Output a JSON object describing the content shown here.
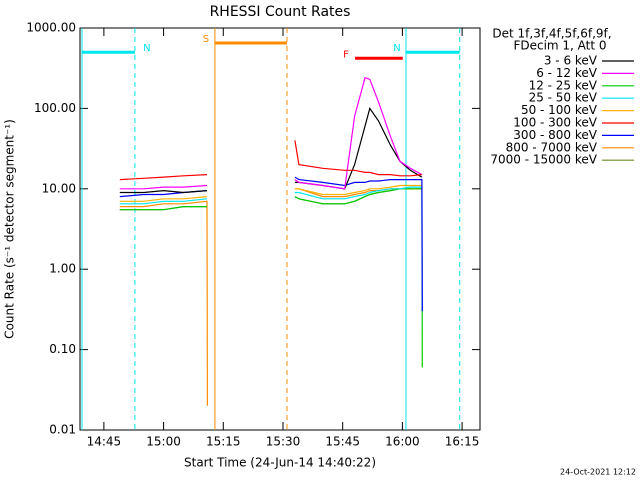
{
  "chart_data": {
    "type": "line",
    "title": "RHESSI Count Rates",
    "xlabel": "Start Time (24-Jun-14 14:40:22)",
    "ylabel": "Count Rate (s⁻¹ detector segment⁻¹)",
    "legend_header": [
      "Det 1f,3f,4f,5f,6f,9f,",
      "FDecim 1, Att 0"
    ],
    "footer": "24-Oct-2021 12:12",
    "log_y": true,
    "xlim": [
      879,
      979.5
    ],
    "ylim": [
      0.01,
      1000
    ],
    "xticks": [
      {
        "value": 885,
        "label": "14:45"
      },
      {
        "value": 900,
        "label": "15:00"
      },
      {
        "value": 915,
        "label": "15:15"
      },
      {
        "value": 930,
        "label": "15:30"
      },
      {
        "value": 945,
        "label": "15:45"
      },
      {
        "value": 960,
        "label": "16:00"
      },
      {
        "value": 975,
        "label": "16:15"
      }
    ],
    "yticks": [
      {
        "value": 1000,
        "label": "1000.00"
      },
      {
        "value": 100,
        "label": "100.00"
      },
      {
        "value": 10,
        "label": "10.00"
      },
      {
        "value": 1,
        "label": "1.00"
      },
      {
        "value": 0.1,
        "label": "0.10"
      },
      0.01
    ],
    "x": [
      889,
      895,
      900,
      905,
      910.9,
      911,
      922,
      933,
      934,
      940,
      945.5,
      948,
      950.6,
      951.8,
      954,
      957,
      959.4,
      962,
      964.9,
      965
    ],
    "series": [
      {
        "name": "7000 - 15000 keV",
        "color": "#6b8e23",
        "values": [
          5.5,
          5.5,
          5.5,
          6,
          6,
          null,
          null,
          8,
          7.5,
          6.5,
          6.5,
          7,
          8,
          8.5,
          9,
          9.5,
          10,
          10,
          10,
          null
        ]
      },
      {
        "name": "800 - 7000 keV",
        "color": "#ff8c00",
        "values": [
          6,
          6,
          6.5,
          6.5,
          7,
          0.02,
          null,
          10,
          10,
          8,
          8,
          8.5,
          9,
          9.5,
          9.5,
          10,
          10,
          10,
          10,
          null
        ]
      },
      {
        "name": "12 - 25 keV",
        "color": "#00cc00",
        "values": [
          5.5,
          5.5,
          5.5,
          6,
          6,
          null,
          null,
          8,
          7.5,
          6.5,
          6.5,
          7,
          8,
          8.5,
          9,
          9.5,
          10,
          10,
          10,
          0.06
        ]
      },
      {
        "name": "25 - 50 keV",
        "color": "#00e5ee",
        "values": [
          6.5,
          6.5,
          7,
          7,
          7.5,
          null,
          null,
          9,
          9,
          7.5,
          7.5,
          8,
          8.5,
          9,
          9.5,
          10,
          10,
          10.5,
          10.5,
          null
        ]
      },
      {
        "name": "50 - 100 keV",
        "color": "#ffb000",
        "values": [
          7,
          7,
          7.5,
          7.5,
          8,
          null,
          null,
          10,
          10,
          8.5,
          8.5,
          9,
          9.5,
          10,
          10,
          10.5,
          11,
          11,
          11,
          null
        ]
      },
      {
        "name": "300 - 800 keV",
        "color": "#0000ff",
        "values": [
          8,
          8.5,
          8.5,
          9,
          9.5,
          null,
          null,
          14,
          13,
          12,
          11,
          12,
          12,
          12.5,
          12.5,
          13,
          13,
          13,
          13,
          0.3
        ]
      },
      {
        "name": "3 - 6 keV",
        "color": "#000000",
        "values": [
          9,
          9,
          9.5,
          9,
          9.5,
          null,
          null,
          12,
          12,
          11,
          10,
          20,
          60,
          100,
          70,
          35,
          22,
          17,
          14,
          null
        ]
      },
      {
        "name": "6 - 12 keV",
        "color": "#ff00ff",
        "values": [
          10,
          10,
          10.5,
          10.5,
          11,
          null,
          null,
          13,
          12,
          11,
          10,
          80,
          240,
          230,
          120,
          45,
          22,
          18,
          15,
          null
        ]
      },
      {
        "name": "100 - 300 keV",
        "color": "#ff0000",
        "values": [
          13,
          13.5,
          14,
          14.5,
          15,
          null,
          null,
          40,
          20,
          18,
          17,
          17,
          16,
          16,
          15,
          15,
          14.5,
          14.5,
          15,
          null
        ]
      }
    ],
    "legend_order": [
      6,
      7,
      2,
      3,
      4,
      8,
      5,
      1,
      0
    ],
    "intervals": [
      {
        "label": "N",
        "start": 879.5,
        "end": 892.8,
        "level": 500,
        "color": "#00e5ee",
        "lines": true
      },
      {
        "label": "S",
        "start": 912.9,
        "end": 931,
        "level": 650,
        "color": "#ff8c00",
        "lines": true
      },
      {
        "label": "F",
        "start": 948.1,
        "end": 960.1,
        "level": 420,
        "color": "#ff0000",
        "lines": false
      },
      {
        "label": "N",
        "start": 960.9,
        "end": 974.4,
        "level": 500,
        "color": "#00e5ee",
        "lines": true
      }
    ]
  }
}
